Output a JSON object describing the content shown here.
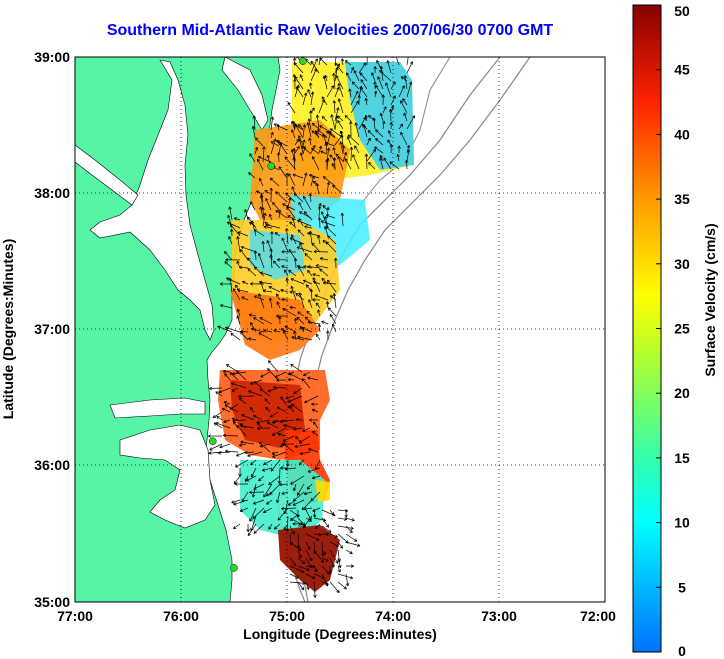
{
  "title": "Southern Mid-Atlantic Raw Velocities 2007/06/30 0700 GMT",
  "x_axis": {
    "label": "Longitude (Degrees:Minutes)",
    "ticks": [
      "77:00",
      "76:00",
      "75:00",
      "74:00",
      "73:00",
      "72:00"
    ]
  },
  "y_axis": {
    "label": "Latitude (Degrees:Minutes)",
    "ticks": [
      "39:00",
      "38:00",
      "37:00",
      "36:00",
      "35:00"
    ]
  },
  "colorbar": {
    "label": "Surface Velocity (cm/s)",
    "ticks": [
      "0",
      "5",
      "10",
      "15",
      "20",
      "25",
      "30",
      "35",
      "40",
      "45",
      "50"
    ],
    "min": 0,
    "max": 50
  },
  "colors": {
    "land": "#55f5a5",
    "title": "#0000ff",
    "station": "#22dd22"
  },
  "stations": [
    {
      "lon": -74.85,
      "lat": 38.97
    },
    {
      "lon": -75.15,
      "lat": 38.2
    },
    {
      "lon": -75.7,
      "lat": 36.18
    },
    {
      "lon": -75.5,
      "lat": 35.25
    }
  ],
  "chart_data": {
    "type": "map",
    "xlabel": "Longitude (Degrees:Minutes)",
    "ylabel": "Latitude (Degrees:Minutes)",
    "xlim": [
      -77.0,
      -72.0
    ],
    "ylim": [
      35.0,
      39.0
    ],
    "colorbar_range": [
      0,
      50
    ],
    "velocity_regions": [
      {
        "lon": -74.6,
        "lat": 38.8,
        "speed": 22
      },
      {
        "lon": -74.2,
        "lat": 38.6,
        "speed": 10
      },
      {
        "lon": -74.8,
        "lat": 38.2,
        "speed": 30
      },
      {
        "lon": -74.5,
        "lat": 37.7,
        "speed": 14
      },
      {
        "lon": -75.2,
        "lat": 37.6,
        "speed": 18
      },
      {
        "lon": -74.9,
        "lat": 37.3,
        "speed": 28
      },
      {
        "lon": -75.1,
        "lat": 36.9,
        "speed": 35
      },
      {
        "lon": -75.2,
        "lat": 36.3,
        "speed": 42
      },
      {
        "lon": -74.9,
        "lat": 36.0,
        "speed": 45
      },
      {
        "lon": -75.0,
        "lat": 35.6,
        "speed": 14
      },
      {
        "lon": -74.8,
        "lat": 35.3,
        "speed": 50
      }
    ]
  }
}
